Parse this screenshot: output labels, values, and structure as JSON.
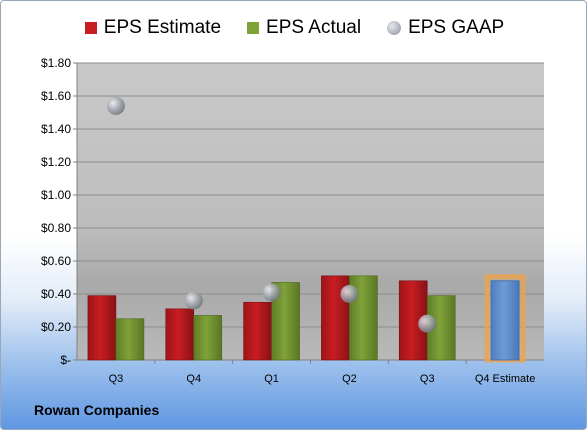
{
  "legend": {
    "estimate": "EPS Estimate",
    "actual": "EPS Actual",
    "gaap": "EPS GAAP"
  },
  "company": "Rowan Companies",
  "colors": {
    "estimate": "#c81d22",
    "actual": "#7fa239",
    "gaap": "#9aa0a8",
    "q4_estimate": "#6c9bd6",
    "q4_outline": "#f0a24a"
  },
  "chart_data": {
    "type": "bar",
    "categories": [
      "Q3",
      "Q4",
      "Q1",
      "Q2",
      "Q3",
      "Q4 Estimate"
    ],
    "series": [
      {
        "name": "EPS Estimate",
        "values": [
          0.39,
          0.31,
          0.35,
          0.51,
          0.48,
          0.48
        ]
      },
      {
        "name": "EPS Actual",
        "values": [
          0.25,
          0.27,
          0.47,
          0.51,
          0.39,
          null
        ]
      },
      {
        "name": "EPS GAAP",
        "type": "scatter",
        "values": [
          1.54,
          0.36,
          0.41,
          0.4,
          0.22,
          null
        ]
      }
    ],
    "yticks": [
      "$-",
      "$0.20",
      "$0.40",
      "$0.60",
      "$0.80",
      "$1.00",
      "$1.20",
      "$1.40",
      "$1.60",
      "$1.80"
    ],
    "ylim": [
      0,
      1.8
    ],
    "grid": true,
    "legend_position": "top"
  }
}
